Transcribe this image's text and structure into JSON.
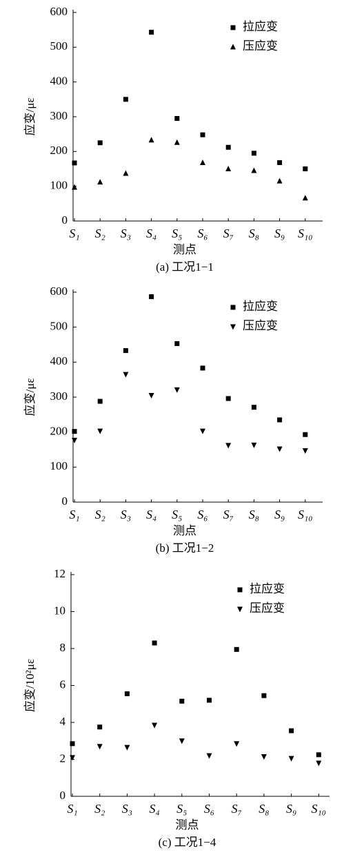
{
  "chart_data": [
    {
      "type": "scatter",
      "subtitle": "(a) 工况1−1",
      "xlabel": "测点",
      "ylabel": "应变/με",
      "categories": [
        "S₁",
        "S₂",
        "S₃",
        "S₄",
        "S₅",
        "S₆",
        "S₇",
        "S₈",
        "S₉",
        "S₁₀"
      ],
      "ylim": [
        0,
        600
      ],
      "yticks": [
        0,
        100,
        200,
        300,
        400,
        500,
        600
      ],
      "legend": "upper right",
      "series": [
        {
          "name": "拉应变",
          "color": "#000000",
          "marker": "square",
          "values": [
            167,
            225,
            350,
            543,
            295,
            248,
            212,
            195,
            168,
            150
          ]
        },
        {
          "name": "压应变",
          "color": "#000000",
          "marker": "triangle-up",
          "values": [
            97,
            112,
            137,
            233,
            226,
            168,
            150,
            145,
            115,
            66
          ]
        }
      ]
    },
    {
      "type": "scatter",
      "subtitle": "(b) 工况1−2",
      "xlabel": "测点",
      "ylabel": "应变/με",
      "categories": [
        "S₁",
        "S₂",
        "S₃",
        "S₄",
        "S₅",
        "S₆",
        "S₇",
        "S₈",
        "S₉",
        "S₁₀"
      ],
      "ylim": [
        0,
        600
      ],
      "yticks": [
        0,
        100,
        200,
        300,
        400,
        500,
        600
      ],
      "legend": "upper right",
      "series": [
        {
          "name": "拉应变",
          "color": "#000000",
          "marker": "square",
          "values": [
            202,
            288,
            433,
            587,
            453,
            383,
            296,
            271,
            235,
            193
          ]
        },
        {
          "name": "压应变",
          "color": "#000000",
          "marker": "triangle-down",
          "values": [
            177,
            203,
            365,
            305,
            321,
            203,
            162,
            163,
            152,
            147
          ]
        }
      ]
    },
    {
      "type": "scatter",
      "subtitle": "(c) 工况1−4",
      "xlabel": "测点",
      "ylabel": "应变/10²με",
      "categories": [
        "S₁",
        "S₂",
        "S₃",
        "S₄",
        "S₅",
        "S₆",
        "S₇",
        "S₈",
        "S₉",
        "S₁₀"
      ],
      "ylim": [
        0,
        12
      ],
      "yticks": [
        0,
        2,
        4,
        6,
        8,
        10,
        12
      ],
      "legend": "upper right",
      "series": [
        {
          "name": "拉应变",
          "color": "#000000",
          "marker": "square",
          "values": [
            2.85,
            3.75,
            5.55,
            8.3,
            5.15,
            5.2,
            7.95,
            5.45,
            3.55,
            2.25
          ]
        },
        {
          "name": "压应变",
          "color": "#000000",
          "marker": "triangle-down",
          "values": [
            2.1,
            2.7,
            2.65,
            3.85,
            3.0,
            2.2,
            2.85,
            2.15,
            2.05,
            1.8
          ]
        }
      ]
    }
  ]
}
